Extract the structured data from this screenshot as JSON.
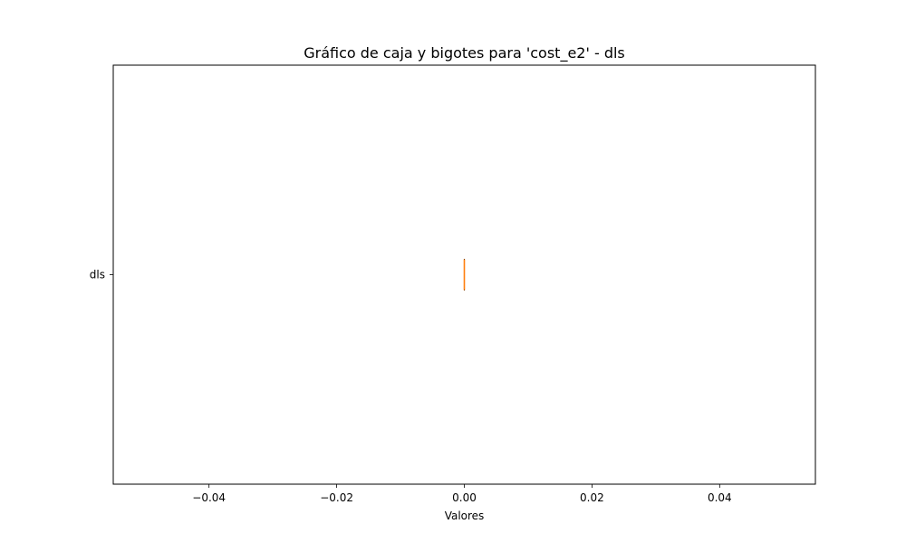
{
  "chart_data": {
    "type": "boxplot",
    "orientation": "horizontal",
    "title": "Gráfico de caja y bigotes para 'cost_e2' - dls",
    "xlabel": "Valores",
    "ylabel": "",
    "xlim": [
      -0.055,
      0.055
    ],
    "x_ticks": [
      -0.04,
      -0.02,
      0.0,
      0.02,
      0.04
    ],
    "x_tick_labels": [
      "−0.04",
      "−0.02",
      "0.00",
      "0.02",
      "0.04"
    ],
    "categories": [
      "dls"
    ],
    "series": [
      {
        "category": "dls",
        "min": 0.0,
        "q1": 0.0,
        "median": 0.0,
        "q3": 0.0,
        "max": 0.0,
        "outliers": []
      }
    ],
    "grid": false,
    "legend": "none",
    "colors": {
      "box": "#000000",
      "median": "#ff7f0e",
      "axes": "#000000"
    }
  }
}
